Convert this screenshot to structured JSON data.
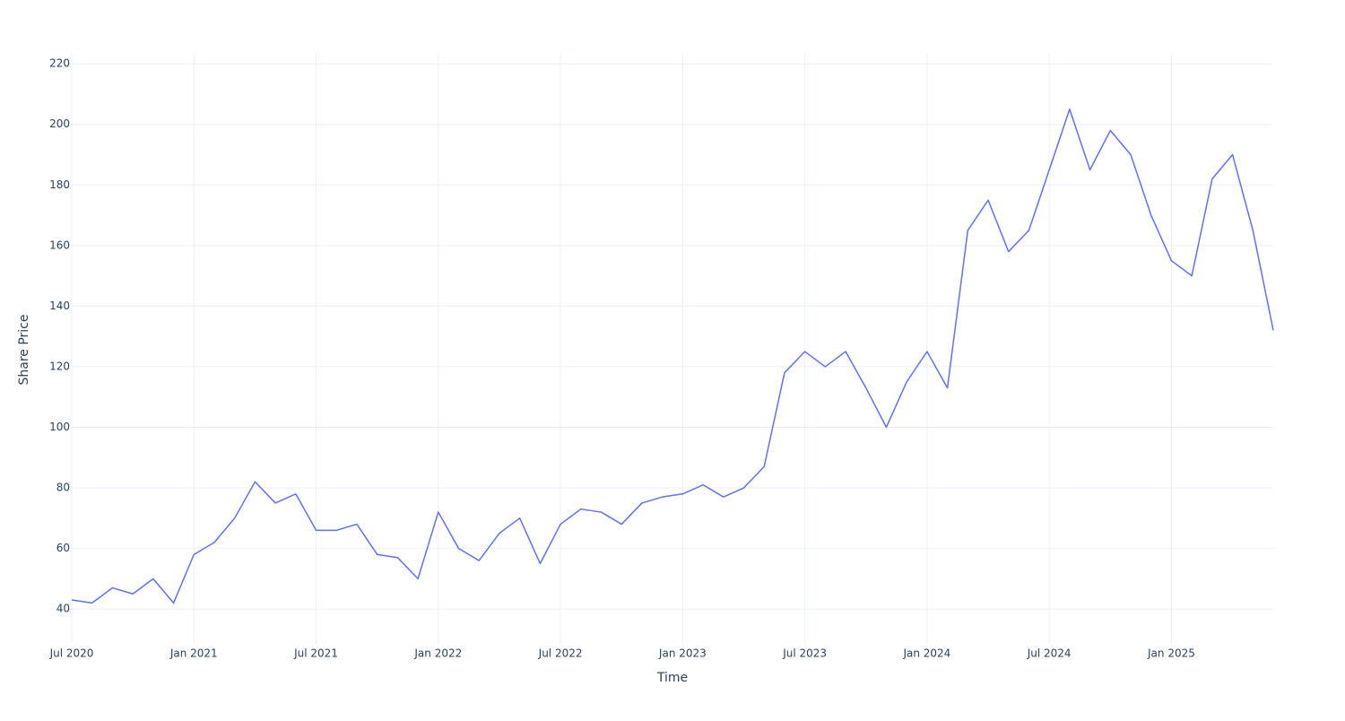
{
  "chart_data": {
    "type": "line",
    "x_label": "Time",
    "y_label": "Share Price",
    "x": [
      "2020-07",
      "2020-08",
      "2020-09",
      "2020-10",
      "2020-11",
      "2020-12",
      "2021-01",
      "2021-02",
      "2021-03",
      "2021-04",
      "2021-05",
      "2021-06",
      "2021-07",
      "2021-08",
      "2021-09",
      "2021-10",
      "2021-11",
      "2021-12",
      "2022-01",
      "2022-02",
      "2022-03",
      "2022-04",
      "2022-05",
      "2022-06",
      "2022-07",
      "2022-08",
      "2022-09",
      "2022-10",
      "2022-11",
      "2022-12",
      "2023-01",
      "2023-02",
      "2023-03",
      "2023-04",
      "2023-05",
      "2023-06",
      "2023-07",
      "2023-08",
      "2023-09",
      "2023-10",
      "2023-11",
      "2023-12",
      "2024-01",
      "2024-02",
      "2024-03",
      "2024-04",
      "2024-05",
      "2024-06",
      "2024-07",
      "2024-08",
      "2024-09",
      "2024-10",
      "2024-11",
      "2024-12",
      "2025-01",
      "2025-02",
      "2025-03",
      "2025-04",
      "2025-05",
      "2025-06"
    ],
    "series": [
      {
        "name": "Share Price",
        "color": "#636efa",
        "values": [
          43,
          42,
          47,
          45,
          50,
          42,
          58,
          62,
          70,
          82,
          75,
          78,
          66,
          66,
          68,
          58,
          57,
          50,
          72,
          60,
          56,
          65,
          70,
          55,
          68,
          73,
          72,
          68,
          75,
          77,
          78,
          81,
          77,
          80,
          87,
          118,
          125,
          120,
          125,
          113,
          100,
          115,
          125,
          113,
          165,
          175,
          158,
          165,
          185,
          205,
          185,
          198,
          190,
          170,
          155,
          150,
          182,
          190,
          165,
          132
        ]
      }
    ],
    "xlim": [
      "2020-07",
      "2025-06"
    ],
    "xticks": [
      {
        "value": "2020-07",
        "label": "Jul 2020"
      },
      {
        "value": "2021-01",
        "label": "Jan 2021"
      },
      {
        "value": "2021-07",
        "label": "Jul 2021"
      },
      {
        "value": "2022-01",
        "label": "Jan 2022"
      },
      {
        "value": "2022-07",
        "label": "Jul 2022"
      },
      {
        "value": "2023-01",
        "label": "Jan 2023"
      },
      {
        "value": "2023-07",
        "label": "Jul 2023"
      },
      {
        "value": "2024-01",
        "label": "Jan 2024"
      },
      {
        "value": "2024-07",
        "label": "Jul 2024"
      },
      {
        "value": "2025-01",
        "label": "Jan 2025"
      }
    ],
    "ylim": [
      28.5,
      223.3
    ],
    "yticks": [
      40,
      60,
      80,
      100,
      120,
      140,
      160,
      180,
      200,
      220
    ],
    "grid": true
  }
}
